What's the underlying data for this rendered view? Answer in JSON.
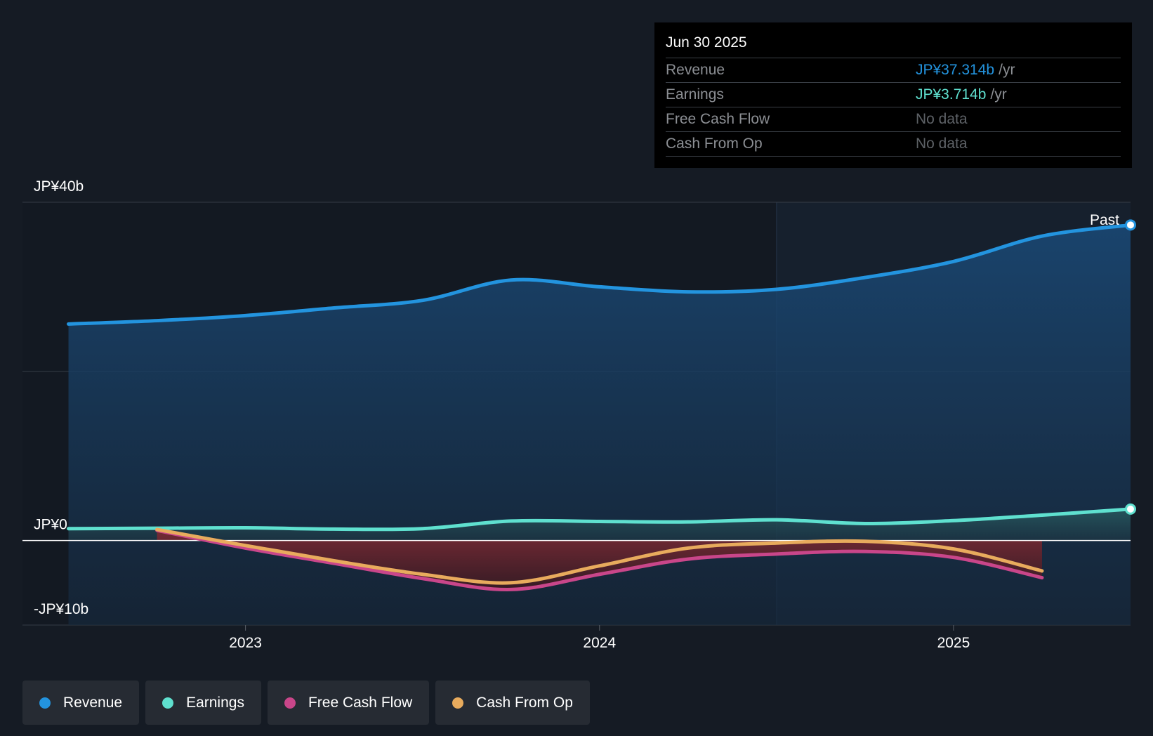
{
  "colors": {
    "revenue": "#2394df",
    "earnings": "#5fe0cf",
    "free_cash_flow": "#c9468a",
    "cash_from_op": "#e8ab5d",
    "background": "#151b24"
  },
  "tooltip": {
    "date": "Jun 30 2025",
    "rows": [
      {
        "label": "Revenue",
        "value": "JP¥37.314b",
        "unit": "/yr"
      },
      {
        "label": "Earnings",
        "value": "JP¥3.714b",
        "unit": "/yr"
      },
      {
        "label": "Free Cash Flow",
        "value": "No data"
      },
      {
        "label": "Cash From Op",
        "value": "No data"
      }
    ]
  },
  "legend": [
    {
      "label": "Revenue",
      "icon": "dot-icon"
    },
    {
      "label": "Earnings",
      "icon": "dot-icon"
    },
    {
      "label": "Free Cash Flow",
      "icon": "dot-icon"
    },
    {
      "label": "Cash From Op",
      "icon": "dot-icon"
    }
  ],
  "chart_data": {
    "type": "line",
    "title": "",
    "xlabel": "",
    "ylabel": "",
    "past_label": "Past",
    "y_tick_labels": [
      {
        "value": 40,
        "label": "JP¥40b"
      },
      {
        "value": 0,
        "label": "JP¥0"
      },
      {
        "value": -10,
        "label": "-JP¥10b"
      }
    ],
    "x_ticks": [
      {
        "value": 2023.0,
        "label": "2023"
      },
      {
        "value": 2024.0,
        "label": "2024"
      },
      {
        "value": 2025.0,
        "label": "2025"
      }
    ],
    "ylim": [
      -10,
      40
    ],
    "xlim": [
      2022.37,
      2025.5
    ],
    "past_start": 2024.5,
    "series": [
      {
        "name": "Revenue",
        "color_key": "revenue",
        "fill": "area",
        "end_marker": true,
        "x": [
          2022.5,
          2022.75,
          2023.0,
          2023.25,
          2023.5,
          2023.75,
          2024.0,
          2024.25,
          2024.5,
          2024.75,
          2025.0,
          2025.25,
          2025.5
        ],
        "y": [
          25.6,
          26.0,
          26.6,
          27.5,
          28.4,
          30.8,
          30.0,
          29.4,
          29.7,
          31.1,
          33.0,
          36.0,
          37.314
        ]
      },
      {
        "name": "Earnings",
        "color_key": "earnings",
        "fill": "area",
        "end_marker": true,
        "x": [
          2022.5,
          2022.75,
          2023.0,
          2023.25,
          2023.5,
          2023.75,
          2024.0,
          2024.25,
          2024.5,
          2024.75,
          2025.0,
          2025.25,
          2025.5
        ],
        "y": [
          1.4,
          1.45,
          1.5,
          1.35,
          1.4,
          2.3,
          2.25,
          2.2,
          2.45,
          2.0,
          2.35,
          3.0,
          3.714
        ]
      },
      {
        "name": "Free Cash Flow",
        "color_key": "free_cash_flow",
        "fill": "band",
        "x": [
          2022.75,
          2023.0,
          2023.25,
          2023.5,
          2023.75,
          2024.0,
          2024.25,
          2024.5,
          2024.75,
          2025.0,
          2025.25
        ],
        "y": [
          1.2,
          -0.9,
          -2.7,
          -4.5,
          -5.8,
          -4.0,
          -2.2,
          -1.6,
          -1.3,
          -2.0,
          -4.4
        ]
      },
      {
        "name": "Cash From Op",
        "color_key": "cash_from_op",
        "fill": "band",
        "x": [
          2022.75,
          2023.0,
          2023.25,
          2023.5,
          2023.75,
          2024.0,
          2024.25,
          2024.5,
          2024.75,
          2025.0,
          2025.25
        ],
        "y": [
          1.3,
          -0.6,
          -2.4,
          -4.0,
          -5.0,
          -3.0,
          -0.9,
          -0.3,
          -0.1,
          -1.0,
          -3.6
        ]
      }
    ]
  }
}
